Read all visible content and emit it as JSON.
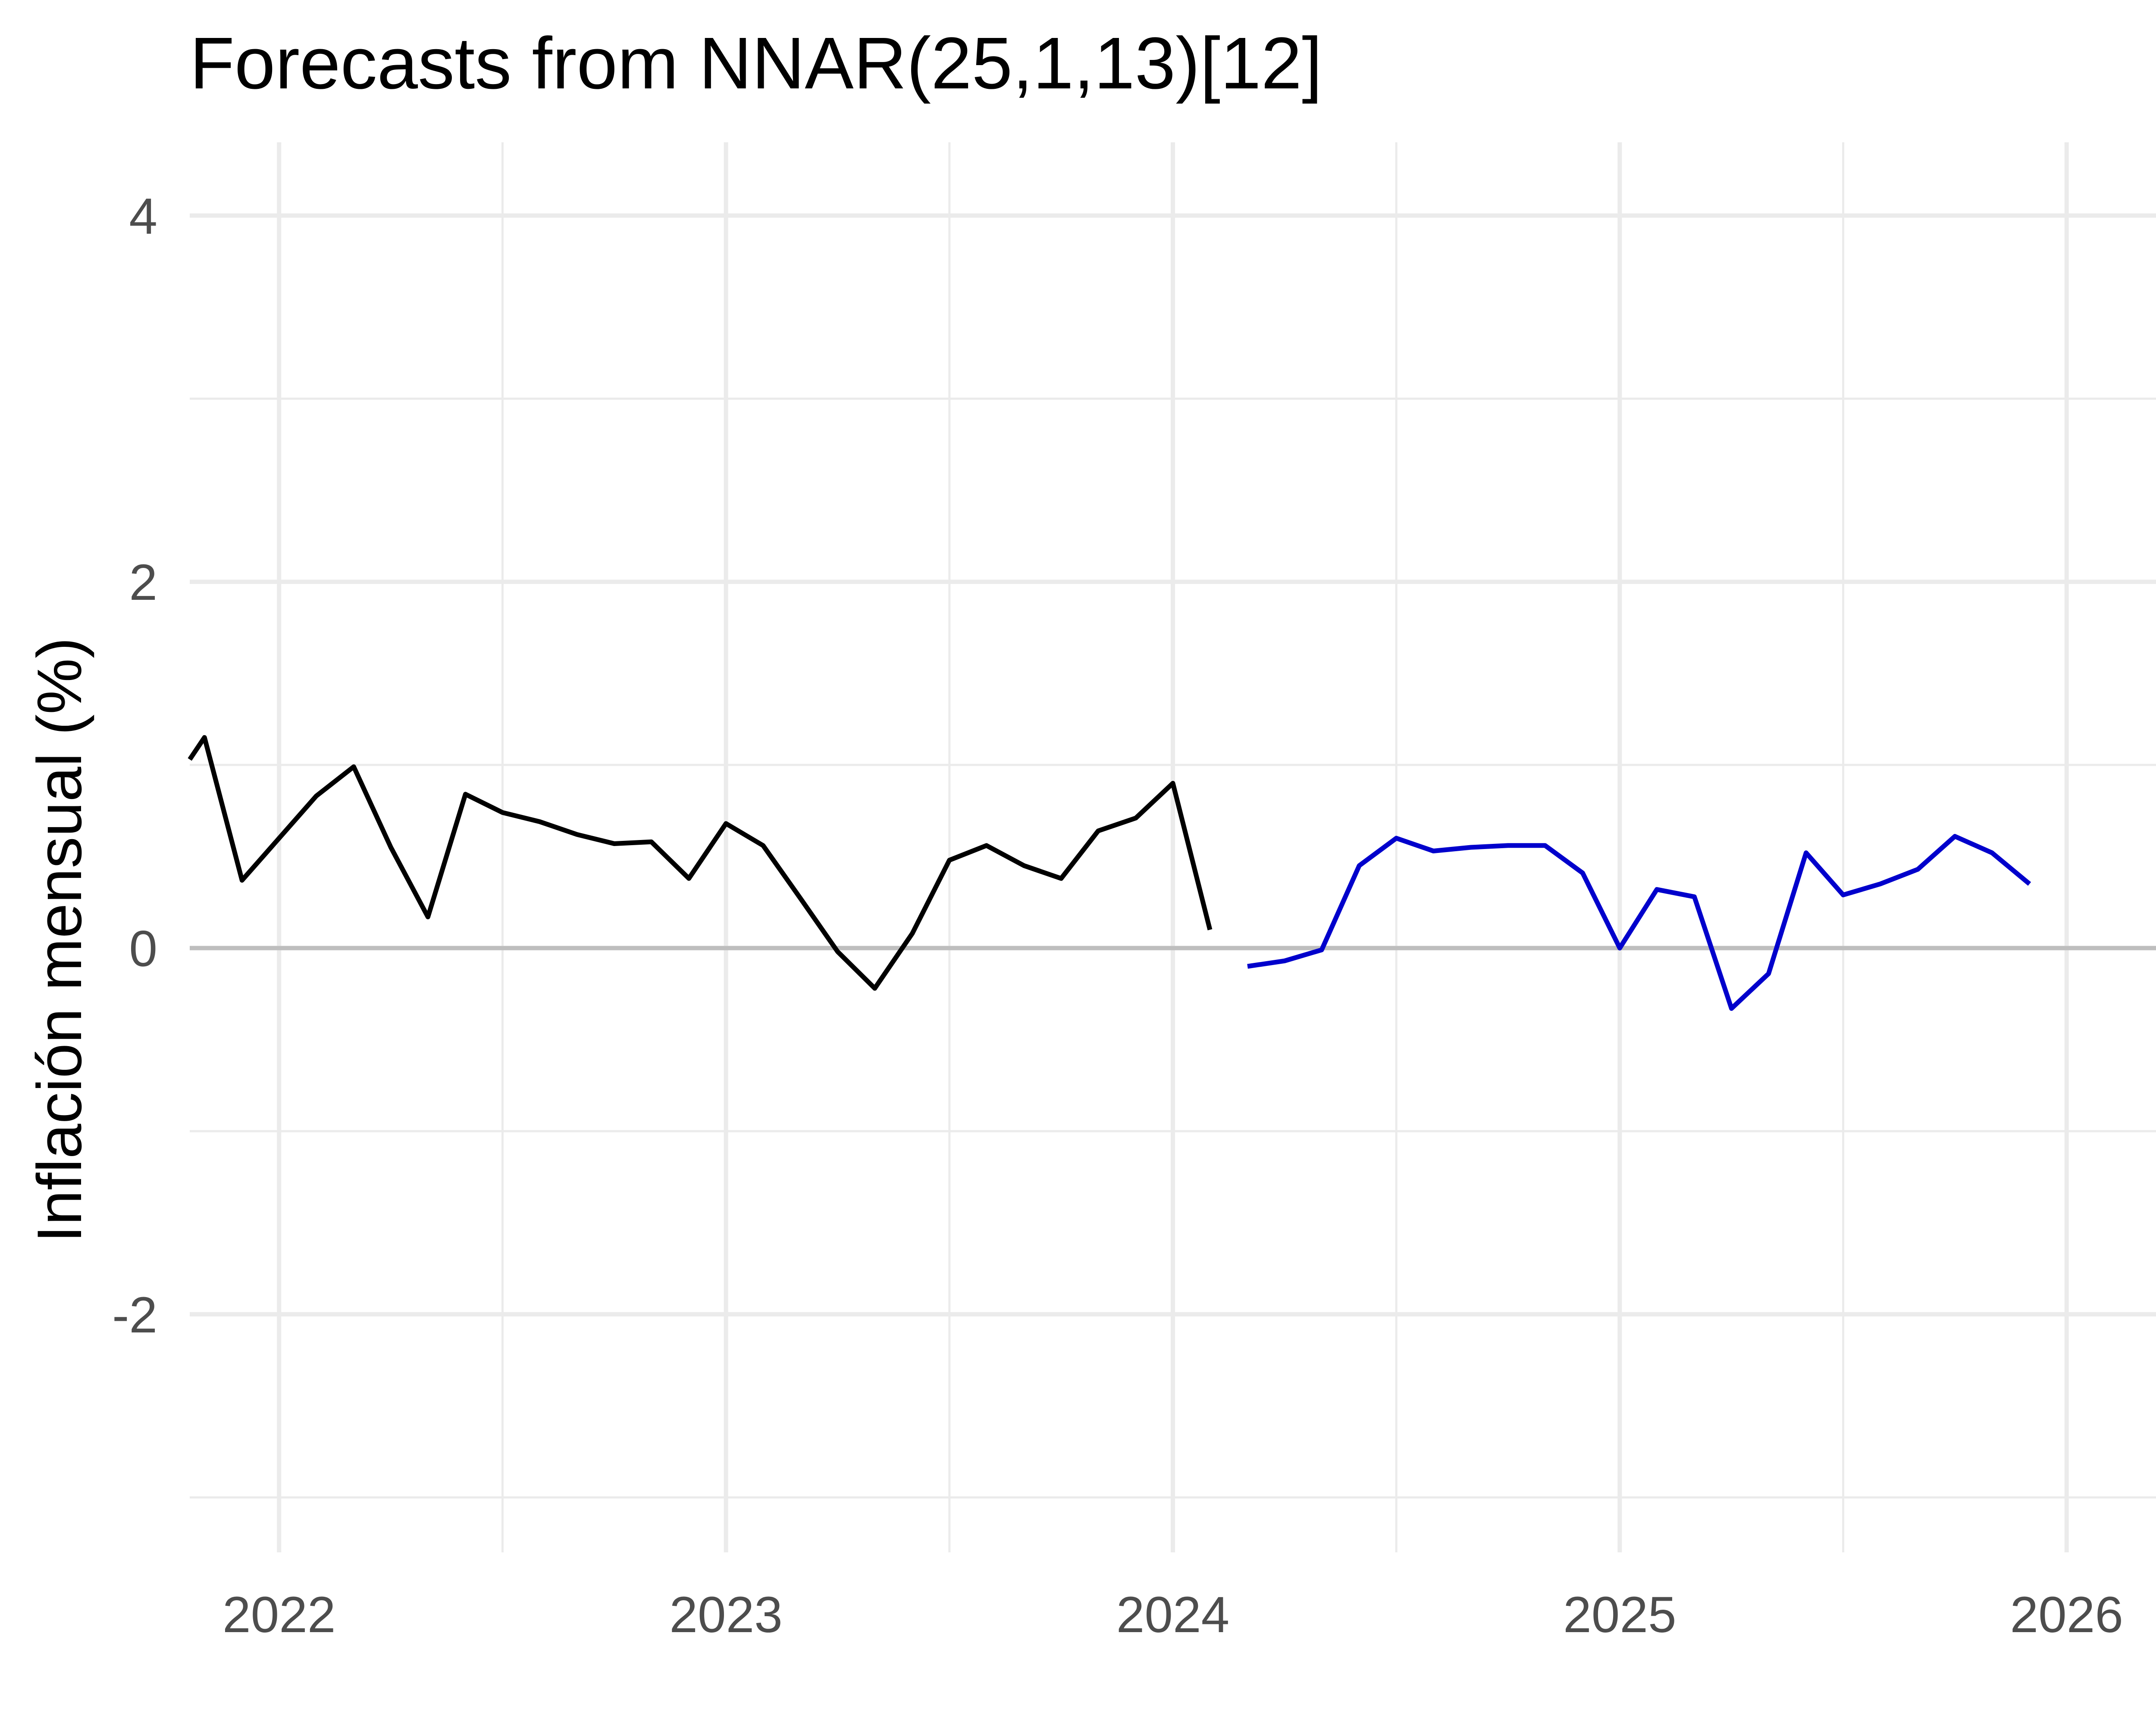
{
  "chart_data": {
    "type": "line",
    "title": "Forecasts from NNAR(25,1,13)[12]",
    "xlabel": "",
    "ylabel": "Inflación mensual (%)",
    "xlim": [
      2021.8,
      2026.2
    ],
    "ylim": [
      -3.3,
      4.4
    ],
    "grid": true,
    "legend": "none",
    "x_ticks": [
      2022,
      2023,
      2024,
      2025,
      2026
    ],
    "x_tick_labels": [
      "2022",
      "2023",
      "2024",
      "2025",
      "2026"
    ],
    "y_ticks": [
      -2,
      0,
      2,
      4
    ],
    "y_tick_labels": [
      "-2",
      "0",
      "2",
      "4"
    ],
    "reference_line": {
      "y": 0,
      "color": "#bebebe"
    },
    "colors": {
      "observed": "#000000",
      "forecast": "#0000cc",
      "grid": "#ebebeb",
      "tick_text": "#4d4d4d"
    },
    "series": [
      {
        "color": "#000000",
        "x": [
          2021.8,
          2021.833,
          2021.917,
          2022.0,
          2022.083,
          2022.167,
          2022.25,
          2022.333,
          2022.417,
          2022.5,
          2022.583,
          2022.667,
          2022.75,
          2022.833,
          2022.917,
          2023.0,
          2023.083,
          2023.167,
          2023.25,
          2023.333,
          2023.417,
          2023.5,
          2023.583,
          2023.667,
          2023.75,
          2023.833,
          2023.917,
          2024.0,
          2024.083
        ],
        "y": [
          1.03,
          1.15,
          0.37,
          0.6,
          0.83,
          0.99,
          0.55,
          0.17,
          0.84,
          0.74,
          0.69,
          0.62,
          0.57,
          0.58,
          0.38,
          0.68,
          0.56,
          0.27,
          -0.02,
          -0.22,
          0.08,
          0.48,
          0.56,
          0.45,
          0.38,
          0.64,
          0.71,
          0.9,
          0.1
        ]
      },
      {
        "color": "#0000cc",
        "x": [
          2024.167,
          2024.25,
          2024.333,
          2024.417,
          2024.5,
          2024.583,
          2024.667,
          2024.75,
          2024.833,
          2024.917,
          2025.0,
          2025.083,
          2025.167,
          2025.25,
          2025.333,
          2025.417,
          2025.5,
          2025.583,
          2025.667,
          2025.75,
          2025.833,
          2025.917
        ],
        "y": [
          -0.1,
          -0.07,
          -0.01,
          0.45,
          0.6,
          0.53,
          0.55,
          0.56,
          0.56,
          0.41,
          0.0,
          0.32,
          0.28,
          -0.33,
          -0.14,
          0.52,
          0.29,
          0.35,
          0.43,
          0.61,
          0.52,
          0.35
        ]
      }
    ]
  }
}
